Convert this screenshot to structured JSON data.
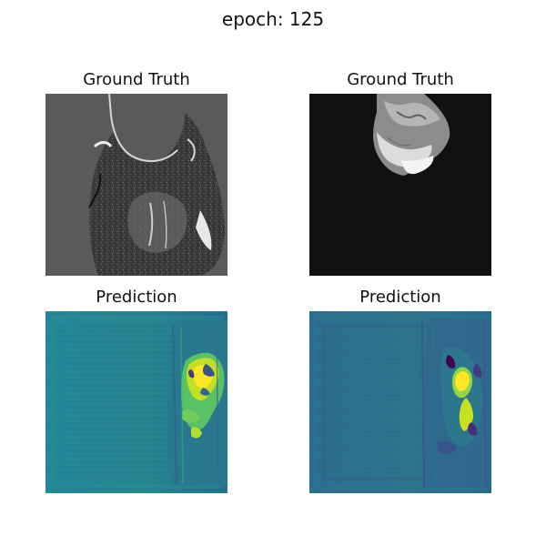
{
  "figure": {
    "suptitle": "epoch: 125"
  },
  "panels": [
    {
      "title": "Ground Truth",
      "kind": "grayscale-mri-slice"
    },
    {
      "title": "Ground Truth",
      "kind": "grayscale-segmented-region"
    },
    {
      "title": "Prediction",
      "kind": "viridis-heatmap"
    },
    {
      "title": "Prediction",
      "kind": "viridis-heatmap"
    }
  ],
  "colors": {
    "viridis_dark": "#440154",
    "viridis_blue": "#31688e",
    "viridis_teal": "#26828e",
    "viridis_green": "#35b779",
    "viridis_yellow": "#fde725",
    "gray_background": "#5a5a5a",
    "black_background": "#111111"
  }
}
